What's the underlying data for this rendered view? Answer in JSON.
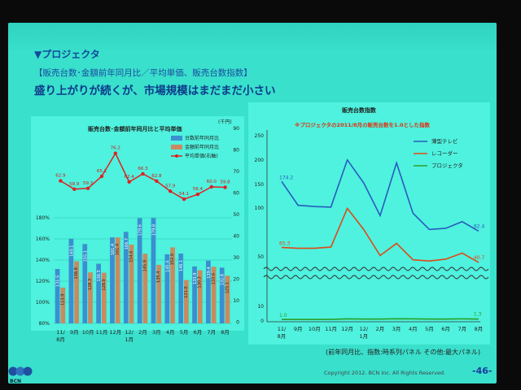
{
  "slide": {
    "title": "▼プロジェクタ",
    "subtitle": "【販売台数･金額前年同月比／平均単価、販売台数指数】",
    "headline": "盛り上がりが続くが、市場規模はまだまだ小さい",
    "footnote": "(前年同月比、指数:時系列パネル その他:最大パネル)",
    "copyright": "Copyright 2012. BCN Inc. All Rights Reserved.",
    "page_number": "-46-",
    "logo_text": "BCN",
    "colors": {
      "background": "#39e0cc",
      "panel": "#4ff0dc",
      "accent_title": "#124a9a"
    }
  },
  "chart_data": [
    {
      "type": "bar",
      "title": "販売台数･金額前年同月比と平均単価",
      "categories": [
        "11/\n8月",
        "9月",
        "10月",
        "11月",
        "12月",
        "12/\n1月",
        "2月",
        "3月",
        "4月",
        "5月",
        "6月",
        "7月",
        "8月"
      ],
      "y2label": "(千円)",
      "ylim": [
        80,
        180
      ],
      "yticks": [
        "180%",
        "160%",
        "140%",
        "120%",
        "100%",
        "80%"
      ],
      "y2ticks": [
        "90",
        "80",
        "70",
        "60",
        "50",
        "40",
        "30",
        "20",
        "10",
        "0"
      ],
      "y2lim": [
        0,
        90
      ],
      "series": [
        {
          "name": "台数前年同月比",
          "type": "bar",
          "color": "#3a8fd0",
          "values": [
            131.5,
            160.1,
            155.1,
            136.5,
            161.4,
            166.7,
            179.6,
            179.8,
            145.4,
            146.1,
            133.9,
            139.4,
            132.8
          ],
          "labels": [
            "131.5",
            "160.1",
            "155.1",
            "136.5",
            "161.4",
            "166.7",
            "179.6",
            "179.8",
            "145.4",
            "146.1",
            "133.9",
            "139.4",
            "132.8"
          ]
        },
        {
          "name": "金額前年同月比",
          "type": "bar",
          "color": "#c98a60",
          "values": [
            113.9,
            138.8,
            128.3,
            128.0,
            161.4,
            154.6,
            145.9,
            135.4,
            152.0,
            121.0,
            130.3,
            133.6,
            125.1
          ],
          "labels": [
            "113.9",
            "138.8",
            "128.3",
            "128.0",
            "161.4",
            "154.6",
            "145.9",
            "135.4",
            "152.0",
            "121.0",
            "130.3",
            "133.6",
            "125.1"
          ]
        },
        {
          "name": "平均単価(右軸)",
          "type": "line",
          "color": "#e02020",
          "values": [
            62.9,
            58.9,
            59.3,
            65.1,
            76.2,
            62.4,
            66.3,
            62.8,
            57.9,
            54.1,
            56.4,
            60.0,
            59.8
          ],
          "labels": [
            "62.9",
            "58.9",
            "59.3",
            "65.1",
            "76.2",
            "62.4",
            "66.3",
            "62.8",
            "57.9",
            "54.1",
            "56.4",
            "60.0",
            "59.8"
          ]
        }
      ],
      "legend": "top-right"
    },
    {
      "type": "line",
      "title": "販売台数指数",
      "annotation": "※プロジェクタの2011/8月の販売台数を1.0とした指数",
      "categories": [
        "11/\n8月",
        "9月",
        "10月",
        "11月",
        "12月",
        "12/\n1月",
        "2月",
        "3月",
        "4月",
        "5月",
        "6月",
        "7月",
        "8月"
      ],
      "yticks": [
        "250",
        "200",
        "150",
        "100",
        "50",
        "10",
        "0"
      ],
      "series": [
        {
          "name": "薄型テレビ",
          "color": "#2a5ac0",
          "values": [
            174.2,
            135,
            133,
            132,
            210,
            172,
            118,
            205,
            122,
            95,
            97,
            108,
            92.4
          ],
          "start_label": "174.2",
          "end_label": "92.4"
        },
        {
          "name": "レコーダー",
          "color": "#e04818",
          "values": [
            65.3,
            64,
            64,
            66,
            130,
            95,
            52,
            72,
            45,
            43,
            46,
            56,
            40.7
          ],
          "start_label": "65.3",
          "end_label": "40.7"
        },
        {
          "name": "プロジェクタ",
          "color": "#2aa02a",
          "values": [
            1.0,
            1.0,
            1.0,
            1.1,
            1.4,
            1.3,
            1.3,
            1.5,
            1.4,
            1.3,
            1.3,
            1.4,
            1.3
          ],
          "start_label": "1.0",
          "end_label": "1.3"
        }
      ],
      "legend": "top-right",
      "broken_axis": true
    }
  ]
}
